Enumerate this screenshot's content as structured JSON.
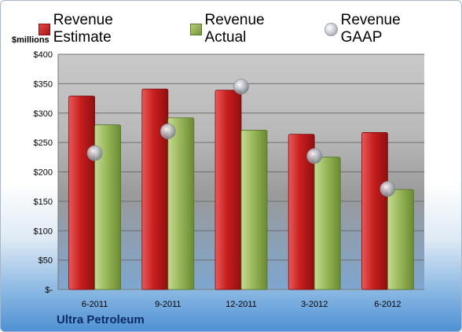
{
  "legend": {
    "estimate": "Revenue Estimate",
    "actual": "Revenue Actual",
    "gaap": "Revenue GAAP"
  },
  "unit_label": "$millions",
  "company": "Ultra Petroleum",
  "colors": {
    "estimate": "#c81e1e",
    "actual": "#9ab85a",
    "gaap": "#b8bcc2"
  },
  "chart_data": {
    "type": "bar",
    "categories": [
      "6-2011",
      "9-2011",
      "12-2011",
      "3-2012",
      "6-2012"
    ],
    "series": [
      {
        "name": "Revenue Estimate",
        "type": "bar",
        "values": [
          329,
          341,
          339,
          264,
          267
        ]
      },
      {
        "name": "Revenue Actual",
        "type": "bar",
        "values": [
          280,
          292,
          271,
          225,
          170
        ]
      },
      {
        "name": "Revenue GAAP",
        "type": "scatter",
        "values": [
          232,
          269,
          345,
          227,
          171
        ]
      }
    ],
    "ylabel": "$millions",
    "ylim": [
      0,
      400
    ],
    "yticks": [
      0,
      50,
      100,
      150,
      200,
      250,
      300,
      350,
      400
    ],
    "ytick_labels": [
      "$-",
      "$50",
      "$100",
      "$150",
      "$200",
      "$250",
      "$300",
      "$350",
      "$400"
    ],
    "grid": true,
    "legend_position": "top"
  }
}
